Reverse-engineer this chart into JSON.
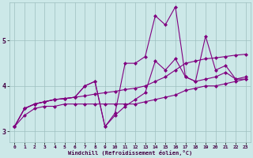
{
  "title": "",
  "xlabel": "Windchill (Refroidissement éolien,°C)",
  "ylabel": "",
  "bg_color": "#cce8e8",
  "line_color": "#800080",
  "grid_color": "#9dbfbf",
  "xlim": [
    -0.5,
    23.5
  ],
  "ylim": [
    2.75,
    5.85
  ],
  "xticks": [
    0,
    1,
    2,
    3,
    4,
    5,
    6,
    7,
    8,
    9,
    10,
    11,
    12,
    13,
    14,
    15,
    16,
    17,
    18,
    19,
    20,
    21,
    22,
    23
  ],
  "yticks": [
    3,
    4,
    5
  ],
  "series": [
    {
      "x": [
        0,
        1,
        2,
        3,
        4,
        5,
        6,
        7,
        8,
        9,
        10,
        11,
        12,
        13,
        14,
        15,
        16,
        17,
        18,
        19,
        20,
        21,
        22,
        23
      ],
      "y": [
        3.1,
        3.35,
        3.5,
        3.55,
        3.55,
        3.6,
        3.6,
        3.6,
        3.6,
        3.6,
        3.6,
        3.6,
        3.6,
        3.65,
        3.7,
        3.75,
        3.8,
        3.9,
        3.95,
        4.0,
        4.0,
        4.05,
        4.1,
        4.15
      ],
      "marker": "D",
      "markersize": 2,
      "linewidth": 0.8,
      "linestyle": "-"
    },
    {
      "x": [
        0,
        1,
        2,
        3,
        4,
        5,
        6,
        7,
        8,
        9,
        10,
        11,
        12,
        13,
        14,
        15,
        16,
        17,
        18,
        19,
        20,
        21,
        22,
        23
      ],
      "y": [
        3.1,
        3.5,
        3.6,
        3.65,
        3.7,
        3.72,
        3.75,
        3.78,
        3.82,
        3.85,
        3.88,
        3.92,
        3.95,
        4.0,
        4.1,
        4.2,
        4.35,
        4.5,
        4.55,
        4.6,
        4.62,
        4.65,
        4.68,
        4.7
      ],
      "marker": "D",
      "markersize": 2,
      "linewidth": 0.8,
      "linestyle": "-"
    },
    {
      "x": [
        0,
        1,
        2,
        3,
        4,
        5,
        6,
        7,
        8,
        9,
        10,
        11,
        12,
        13,
        14,
        15,
        16,
        17,
        18,
        19,
        20,
        21,
        22,
        23
      ],
      "y": [
        3.1,
        3.5,
        3.6,
        3.65,
        3.7,
        3.72,
        3.75,
        4.0,
        4.1,
        3.1,
        3.35,
        3.55,
        3.7,
        3.85,
        4.55,
        4.35,
        4.6,
        4.2,
        4.1,
        4.15,
        4.2,
        4.3,
        4.15,
        4.15
      ],
      "marker": "D",
      "markersize": 2,
      "linewidth": 0.8,
      "linestyle": "-"
    },
    {
      "x": [
        0,
        1,
        2,
        3,
        4,
        5,
        6,
        7,
        8,
        9,
        10,
        11,
        12,
        13,
        14,
        15,
        16,
        17,
        18,
        19,
        20,
        21,
        22,
        23
      ],
      "y": [
        3.1,
        3.5,
        3.6,
        3.65,
        3.7,
        3.72,
        3.75,
        4.0,
        4.1,
        3.1,
        3.4,
        4.5,
        4.5,
        4.65,
        5.55,
        5.35,
        5.75,
        4.2,
        4.1,
        5.1,
        4.35,
        4.45,
        4.15,
        4.2
      ],
      "marker": "D",
      "markersize": 2,
      "linewidth": 0.8,
      "linestyle": "-"
    }
  ]
}
